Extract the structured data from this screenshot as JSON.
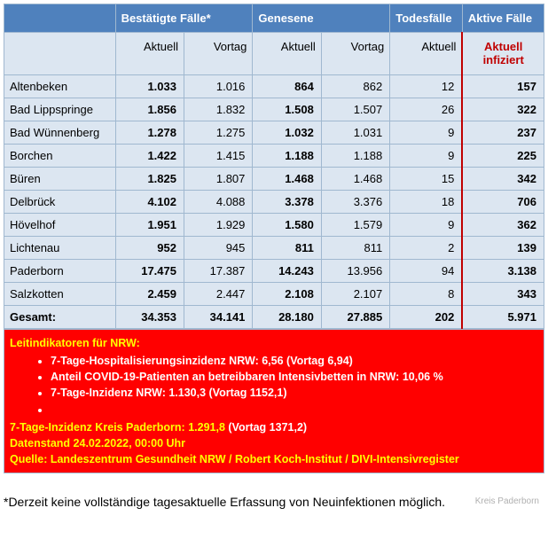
{
  "headers": {
    "group1": "Bestätigte Fälle*",
    "group2": "Genesene",
    "group3": "Todesfälle",
    "group4": "Aktive Fälle",
    "sub_aktuell": "Aktuell",
    "sub_vortag": "Vortag",
    "sub_aktuell_infiziert": "Aktuell infiziert"
  },
  "rows": [
    {
      "label": "Altenbeken",
      "c1": "1.033",
      "c2": "1.016",
      "c3": "864",
      "c4": "862",
      "c5": "12",
      "c6": "157"
    },
    {
      "label": "Bad Lippspringe",
      "c1": "1.856",
      "c2": "1.832",
      "c3": "1.508",
      "c4": "1.507",
      "c5": "26",
      "c6": "322"
    },
    {
      "label": "Bad Wünnenberg",
      "c1": "1.278",
      "c2": "1.275",
      "c3": "1.032",
      "c4": "1.031",
      "c5": "9",
      "c6": "237"
    },
    {
      "label": "Borchen",
      "c1": "1.422",
      "c2": "1.415",
      "c3": "1.188",
      "c4": "1.188",
      "c5": "9",
      "c6": "225"
    },
    {
      "label": "Büren",
      "c1": "1.825",
      "c2": "1.807",
      "c3": "1.468",
      "c4": "1.468",
      "c5": "15",
      "c6": "342"
    },
    {
      "label": "Delbrück",
      "c1": "4.102",
      "c2": "4.088",
      "c3": "3.378",
      "c4": "3.376",
      "c5": "18",
      "c6": "706"
    },
    {
      "label": "Hövelhof",
      "c1": "1.951",
      "c2": "1.929",
      "c3": "1.580",
      "c4": "1.579",
      "c5": "9",
      "c6": "362"
    },
    {
      "label": "Lichtenau",
      "c1": "952",
      "c2": "945",
      "c3": "811",
      "c4": "811",
      "c5": "2",
      "c6": "139"
    },
    {
      "label": "Paderborn",
      "c1": "17.475",
      "c2": "17.387",
      "c3": "14.243",
      "c4": "13.956",
      "c5": "94",
      "c6": "3.138"
    },
    {
      "label": "Salzkotten",
      "c1": "2.459",
      "c2": "2.447",
      "c3": "2.108",
      "c4": "2.107",
      "c5": "8",
      "c6": "343"
    }
  ],
  "total": {
    "label": "Gesamt:",
    "c1": "34.353",
    "c2": "34.141",
    "c3": "28.180",
    "c4": "27.885",
    "c5": "202",
    "c6": "5.971"
  },
  "info": {
    "title": "Leitindikatoren für NRW:",
    "b1": "7-Tage-Hospitalisierungsinzidenz NRW: 6,56 ",
    "b1v": "(Vortag 6,94)",
    "b2": "Anteil COVID-19-Patienten an betreibbaren Intensivbetten in NRW: 10,06 %",
    "b3": "7-Tage-Inzidenz NRW: 1.130,3 ",
    "b3v": "(Vortag 1152,1)",
    "kreis": "7-Tage-Inzidenz Kreis Paderborn: 1.291,8 ",
    "kreisv": "(Vortag 1371,2)",
    "date": "Datenstand 24.02.2022, 00:00 Uhr",
    "source": "Quelle: Landeszentrum Gesundheit NRW / Robert Koch-Institut / DIVI-Intensivregister"
  },
  "footnote": "*Derzeit keine vollständige tagesaktuelle Erfassung von Neuinfektionen möglich.",
  "watermark": "Kreis Paderborn"
}
